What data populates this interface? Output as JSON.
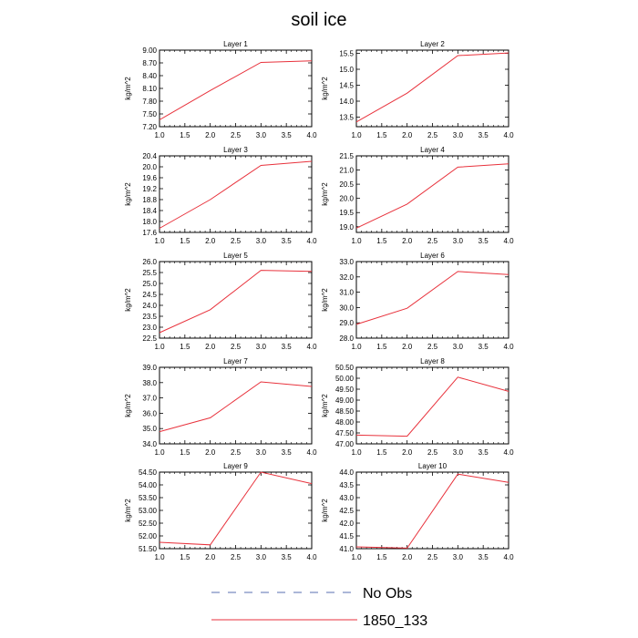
{
  "title": "soil ice",
  "chart_data": [
    {
      "type": "line",
      "title": "Layer 1",
      "ylabel": "kg/m^2",
      "x": [
        1.0,
        2.0,
        3.0,
        4.0
      ],
      "xlim": [
        1.0,
        4.0
      ],
      "ylim": [
        7.2,
        9.0
      ],
      "xticks": [
        "1.0",
        "1.5",
        "2.0",
        "2.5",
        "3.0",
        "3.5",
        "4.0"
      ],
      "yticks": [
        "7.20",
        "7.50",
        "7.80",
        "8.10",
        "8.40",
        "8.70",
        "9.00"
      ],
      "series": [
        {
          "name": "1850_133",
          "values": [
            7.36,
            8.05,
            8.71,
            8.75
          ]
        }
      ]
    },
    {
      "type": "line",
      "title": "Layer 2",
      "ylabel": "kg/m^2",
      "x": [
        1.0,
        2.0,
        3.0,
        4.0
      ],
      "xlim": [
        1.0,
        4.0
      ],
      "ylim": [
        13.2,
        15.6
      ],
      "xticks": [
        "1.0",
        "1.5",
        "2.0",
        "2.5",
        "3.0",
        "3.5",
        "4.0"
      ],
      "yticks": [
        "13.5",
        "14.0",
        "14.5",
        "15.0",
        "15.5"
      ],
      "series": [
        {
          "name": "1850_133",
          "values": [
            13.35,
            14.25,
            15.43,
            15.51
          ]
        }
      ]
    },
    {
      "type": "line",
      "title": "Layer 3",
      "ylabel": "kg/m^2",
      "x": [
        1.0,
        2.0,
        3.0,
        4.0
      ],
      "xlim": [
        1.0,
        4.0
      ],
      "ylim": [
        17.6,
        20.4
      ],
      "xticks": [
        "1.0",
        "1.5",
        "2.0",
        "2.5",
        "3.0",
        "3.5",
        "4.0"
      ],
      "yticks": [
        "17.6",
        "18.0",
        "18.4",
        "18.8",
        "19.2",
        "19.6",
        "20.0",
        "20.4"
      ],
      "series": [
        {
          "name": "1850_133",
          "values": [
            17.75,
            18.8,
            20.05,
            20.2
          ]
        }
      ]
    },
    {
      "type": "line",
      "title": "Layer 4",
      "ylabel": "kg/m^2",
      "x": [
        1.0,
        2.0,
        3.0,
        4.0
      ],
      "xlim": [
        1.0,
        4.0
      ],
      "ylim": [
        18.8,
        21.5
      ],
      "xticks": [
        "1.0",
        "1.5",
        "2.0",
        "2.5",
        "3.0",
        "3.5",
        "4.0"
      ],
      "yticks": [
        "19.0",
        "19.5",
        "20.0",
        "20.5",
        "21.0",
        "21.5"
      ],
      "series": [
        {
          "name": "1850_133",
          "values": [
            18.95,
            19.8,
            21.1,
            21.22
          ]
        }
      ]
    },
    {
      "type": "line",
      "title": "Layer 5",
      "ylabel": "kg/m^2",
      "x": [
        1.0,
        2.0,
        3.0,
        4.0
      ],
      "xlim": [
        1.0,
        4.0
      ],
      "ylim": [
        22.5,
        26.0
      ],
      "xticks": [
        "1.0",
        "1.5",
        "2.0",
        "2.5",
        "3.0",
        "3.5",
        "4.0"
      ],
      "yticks": [
        "22.5",
        "23.0",
        "23.5",
        "24.0",
        "24.5",
        "25.0",
        "25.5",
        "26.0"
      ],
      "series": [
        {
          "name": "1850_133",
          "values": [
            22.75,
            23.8,
            25.6,
            25.55
          ]
        }
      ]
    },
    {
      "type": "line",
      "title": "Layer 6",
      "ylabel": "kg/m^2",
      "x": [
        1.0,
        2.0,
        3.0,
        4.0
      ],
      "xlim": [
        1.0,
        4.0
      ],
      "ylim": [
        28.0,
        33.0
      ],
      "xticks": [
        "1.0",
        "1.5",
        "2.0",
        "2.5",
        "3.0",
        "3.5",
        "4.0"
      ],
      "yticks": [
        "28.0",
        "29.0",
        "30.0",
        "31.0",
        "32.0",
        "33.0"
      ],
      "series": [
        {
          "name": "1850_133",
          "values": [
            28.9,
            29.95,
            32.35,
            32.15
          ]
        }
      ]
    },
    {
      "type": "line",
      "title": "Layer 7",
      "ylabel": "kg/m^2",
      "x": [
        1.0,
        2.0,
        3.0,
        4.0
      ],
      "xlim": [
        1.0,
        4.0
      ],
      "ylim": [
        34.0,
        39.0
      ],
      "xticks": [
        "1.0",
        "1.5",
        "2.0",
        "2.5",
        "3.0",
        "3.5",
        "4.0"
      ],
      "yticks": [
        "34.0",
        "35.0",
        "36.0",
        "37.0",
        "38.0",
        "39.0"
      ],
      "series": [
        {
          "name": "1850_133",
          "values": [
            34.8,
            35.7,
            38.05,
            37.75
          ]
        }
      ]
    },
    {
      "type": "line",
      "title": "Layer 8",
      "ylabel": "kg/m^2",
      "x": [
        1.0,
        2.0,
        3.0,
        4.0
      ],
      "xlim": [
        1.0,
        4.0
      ],
      "ylim": [
        47.0,
        50.5
      ],
      "xticks": [
        "1.0",
        "1.5",
        "2.0",
        "2.5",
        "3.0",
        "3.5",
        "4.0"
      ],
      "yticks": [
        "47.00",
        "47.50",
        "48.00",
        "48.50",
        "49.00",
        "49.50",
        "50.00",
        "50.50"
      ],
      "series": [
        {
          "name": "1850_133",
          "values": [
            47.4,
            47.35,
            50.05,
            49.4
          ]
        }
      ]
    },
    {
      "type": "line",
      "title": "Layer 9",
      "ylabel": "kg/m^2",
      "x": [
        1.0,
        2.0,
        3.0,
        4.0
      ],
      "xlim": [
        1.0,
        4.0
      ],
      "ylim": [
        51.5,
        54.5
      ],
      "xticks": [
        "1.0",
        "1.5",
        "2.0",
        "2.5",
        "3.0",
        "3.5",
        "4.0"
      ],
      "yticks": [
        "51.50",
        "52.00",
        "52.50",
        "53.00",
        "53.50",
        "54.00",
        "54.50"
      ],
      "series": [
        {
          "name": "1850_133",
          "values": [
            51.75,
            51.65,
            54.5,
            54.05
          ]
        }
      ]
    },
    {
      "type": "line",
      "title": "Layer 10",
      "ylabel": "kg/m^2",
      "x": [
        1.0,
        2.0,
        3.0,
        4.0
      ],
      "xlim": [
        1.0,
        4.0
      ],
      "ylim": [
        41.0,
        44.0
      ],
      "xticks": [
        "1.0",
        "1.5",
        "2.0",
        "2.5",
        "3.0",
        "3.5",
        "4.0"
      ],
      "yticks": [
        "41.0",
        "41.5",
        "42.0",
        "42.5",
        "43.0",
        "43.5",
        "44.0"
      ],
      "series": [
        {
          "name": "1850_133",
          "values": [
            41.07,
            41.02,
            43.92,
            43.6
          ]
        }
      ]
    }
  ],
  "legend": [
    {
      "label": "No Obs",
      "color": "#5a6fb0",
      "style": "dashed"
    },
    {
      "label": "1850_133",
      "color": "#e8323c",
      "style": "solid"
    }
  ]
}
